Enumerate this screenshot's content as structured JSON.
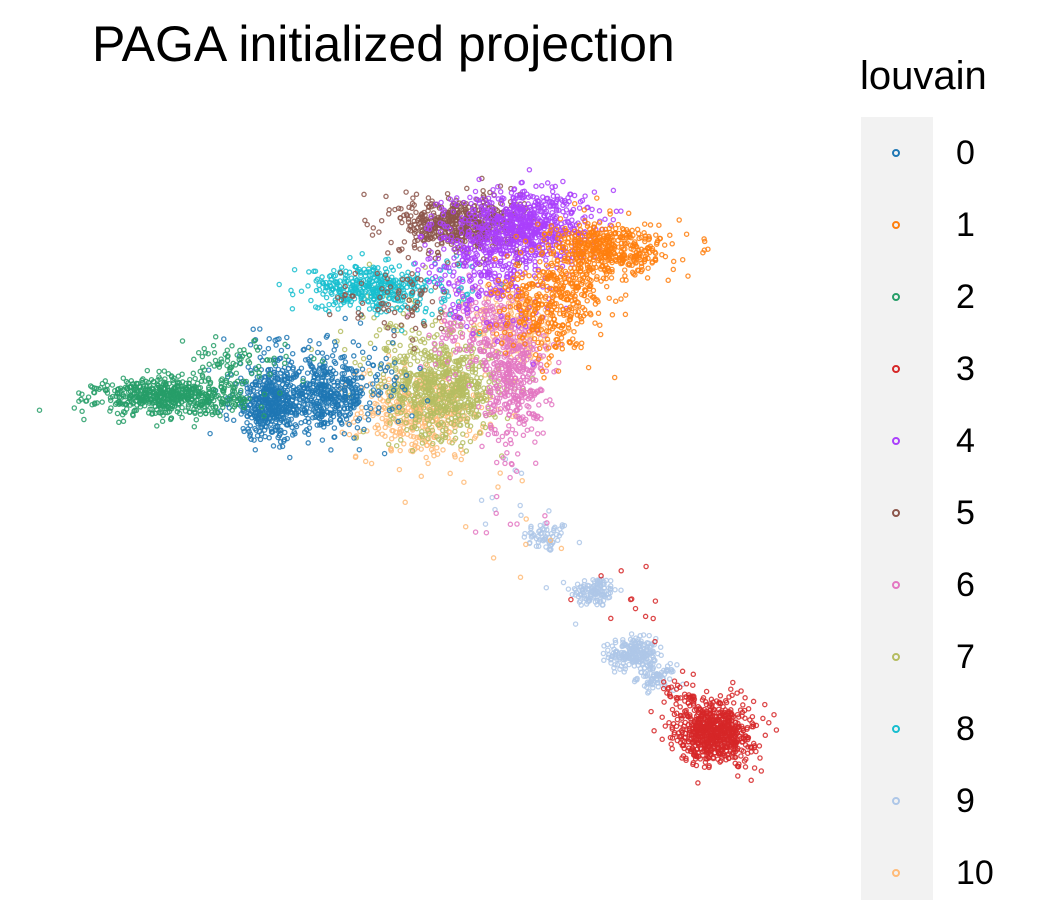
{
  "chart_data": {
    "type": "scatter",
    "title": "PAGA initialized projection",
    "xlabel": "",
    "ylabel": "",
    "grid": false,
    "axes_visible": false,
    "legend_title": "louvain",
    "legend_position": "right",
    "xlim": [
      0,
      100
    ],
    "ylim": [
      0,
      100
    ],
    "series": [
      {
        "name": "0",
        "color": "#1f77b4",
        "clusters": [
          {
            "x": 27,
            "y": 61,
            "sx": 2.6,
            "sy": 2.2,
            "n": 500
          },
          {
            "x": 34,
            "y": 62,
            "sx": 2.5,
            "sy": 2.0,
            "n": 320
          },
          {
            "x": 39,
            "y": 63,
            "sx": 3.0,
            "sy": 3.0,
            "n": 90
          },
          {
            "x": 30,
            "y": 67,
            "sx": 4.0,
            "sy": 2.0,
            "n": 60
          }
        ]
      },
      {
        "name": "1",
        "color": "#ff7f0e",
        "clusters": [
          {
            "x": 70,
            "y": 81,
            "sx": 3.8,
            "sy": 1.7,
            "n": 420
          },
          {
            "x": 62,
            "y": 73,
            "sx": 3.2,
            "sy": 3.0,
            "n": 280
          },
          {
            "x": 66,
            "y": 77,
            "sx": 3.0,
            "sy": 2.5,
            "n": 150
          }
        ]
      },
      {
        "name": "2",
        "color": "#279e68",
        "clusters": [
          {
            "x": 14,
            "y": 62,
            "sx": 4.6,
            "sy": 1.2,
            "n": 600
          },
          {
            "x": 22,
            "y": 66,
            "sx": 3.5,
            "sy": 1.5,
            "n": 80
          }
        ]
      },
      {
        "name": "3",
        "color": "#d62728",
        "clusters": [
          {
            "x": 83.5,
            "y": 19,
            "sx": 2.4,
            "sy": 2.0,
            "n": 700
          },
          {
            "x": 79,
            "y": 24,
            "sx": 1.2,
            "sy": 1.5,
            "n": 40
          },
          {
            "x": 71,
            "y": 36,
            "sx": 4.0,
            "sy": 5.0,
            "n": 12
          }
        ]
      },
      {
        "name": "4",
        "color": "#aa40fc",
        "clusters": [
          {
            "x": 59,
            "y": 84,
            "sx": 4.2,
            "sy": 2.4,
            "n": 700
          },
          {
            "x": 53,
            "y": 79,
            "sx": 3.5,
            "sy": 3.0,
            "n": 200
          },
          {
            "x": 58,
            "y": 75,
            "sx": 4.0,
            "sy": 4.0,
            "n": 60
          }
        ]
      },
      {
        "name": "5",
        "color": "#8c564b",
        "clusters": [
          {
            "x": 51,
            "y": 84,
            "sx": 3.8,
            "sy": 1.8,
            "n": 550
          },
          {
            "x": 43,
            "y": 74,
            "sx": 4.0,
            "sy": 2.5,
            "n": 70
          }
        ]
      },
      {
        "name": "6",
        "color": "#e377c2",
        "clusters": [
          {
            "x": 58,
            "y": 64,
            "sx": 2.0,
            "sy": 4.0,
            "n": 350
          },
          {
            "x": 54,
            "y": 71,
            "sx": 3.0,
            "sy": 3.0,
            "n": 200
          },
          {
            "x": 56,
            "y": 49,
            "sx": 3.0,
            "sy": 4.0,
            "n": 14
          }
        ]
      },
      {
        "name": "7",
        "color": "#b5bd61",
        "clusters": [
          {
            "x": 49,
            "y": 63,
            "sx": 3.5,
            "sy": 3.0,
            "n": 600
          },
          {
            "x": 44,
            "y": 69,
            "sx": 4.0,
            "sy": 4.0,
            "n": 100
          }
        ]
      },
      {
        "name": "8",
        "color": "#17becf",
        "clusters": [
          {
            "x": 39,
            "y": 76,
            "sx": 3.6,
            "sy": 1.4,
            "n": 320
          },
          {
            "x": 47,
            "y": 76,
            "sx": 4.0,
            "sy": 2.0,
            "n": 80
          }
        ]
      },
      {
        "name": "9",
        "color": "#aec7e8",
        "clusters": [
          {
            "x": 62,
            "y": 44,
            "sx": 1.5,
            "sy": 1.0,
            "n": 60
          },
          {
            "x": 68,
            "y": 37,
            "sx": 1.5,
            "sy": 1.0,
            "n": 120
          },
          {
            "x": 73,
            "y": 29,
            "sx": 1.5,
            "sy": 1.0,
            "n": 220
          },
          {
            "x": 76,
            "y": 26,
            "sx": 1.2,
            "sy": 0.8,
            "n": 80
          },
          {
            "x": 57,
            "y": 48,
            "sx": 3.0,
            "sy": 3.0,
            "n": 10
          }
        ]
      },
      {
        "name": "10",
        "color": "#ffbb78",
        "clusters": [
          {
            "x": 46,
            "y": 60,
            "sx": 4.0,
            "sy": 3.0,
            "n": 400
          },
          {
            "x": 58,
            "y": 71,
            "sx": 3.0,
            "sy": 2.5,
            "n": 180
          },
          {
            "x": 59,
            "y": 46,
            "sx": 3.0,
            "sy": 4.0,
            "n": 10
          }
        ]
      }
    ],
    "draw_order": [
      "9",
      "10",
      "7",
      "6",
      "0",
      "2",
      "8",
      "5",
      "4",
      "1",
      "3"
    ]
  }
}
